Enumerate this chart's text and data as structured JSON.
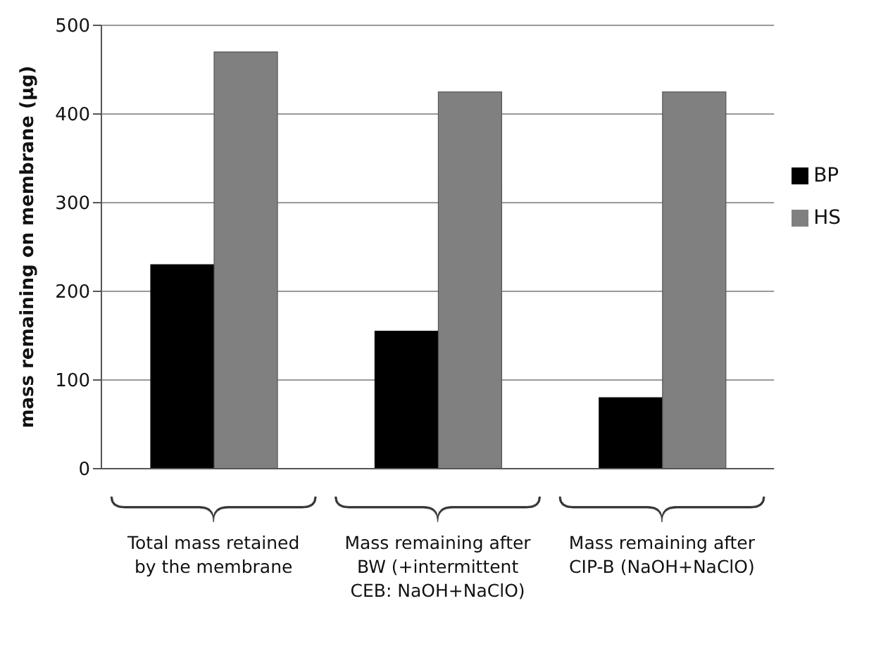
{
  "chart_data": {
    "type": "bar",
    "ylabel": "mass remaining on membrane (µg)",
    "categories": [
      "Total mass retained by the membrane",
      "Mass remaining after BW (+intermittent CEB: NaOH+NaClO)",
      "Mass remaining after CIP-B (NaOH+NaClO)"
    ],
    "series": [
      {
        "name": "BP",
        "color": "#000000",
        "values": [
          230,
          155,
          80
        ]
      },
      {
        "name": "HS",
        "color": "#808080",
        "values": [
          470,
          425,
          425
        ]
      }
    ],
    "ylim": [
      0,
      500
    ],
    "yticks": [
      0,
      100,
      200,
      300,
      400,
      500
    ],
    "grid": "y",
    "legend": "right"
  }
}
